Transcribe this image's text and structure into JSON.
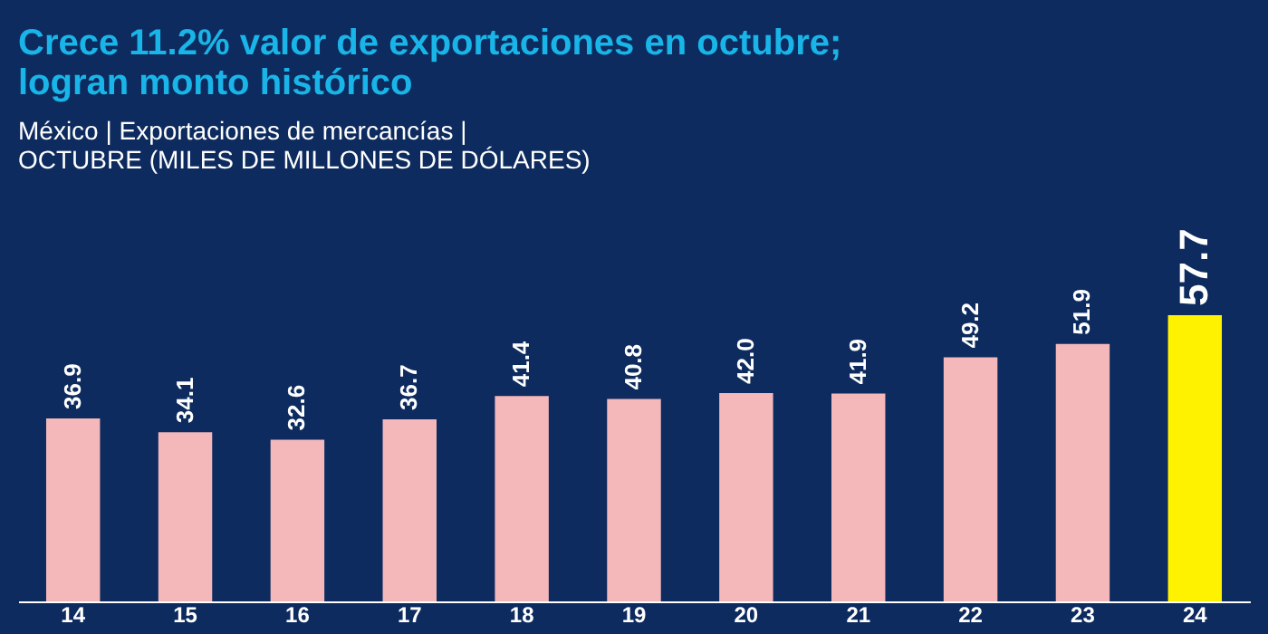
{
  "chart_data": {
    "type": "bar",
    "title": "Crece 11.2% valor de exportaciones en octubre; logran monto histórico",
    "subtitle": "México | Exportaciones de mercancías |",
    "annotations": [
      "OCTUBRE (MILES DE MILLONES DE DÓLARES)"
    ],
    "categories": [
      "14",
      "15",
      "16",
      "17",
      "18",
      "19",
      "20",
      "21",
      "22",
      "23",
      "24"
    ],
    "values": [
      36.9,
      34.1,
      32.6,
      36.7,
      41.4,
      40.8,
      42.0,
      41.9,
      49.2,
      51.9,
      57.7
    ],
    "colors": [
      "#f4b8bb",
      "#f4b8bb",
      "#f4b8bb",
      "#f4b8bb",
      "#f4b8bb",
      "#f4b8bb",
      "#f4b8bb",
      "#f4b8bb",
      "#f4b8bb",
      "#f4b8bb",
      "#fff200"
    ],
    "value_labels": [
      "36.9",
      "34.1",
      "32.6",
      "36.7",
      "41.4",
      "40.8",
      "42.0",
      "41.9",
      "49.2",
      "51.9",
      "57.7"
    ],
    "tick_labels": "x"
  }
}
